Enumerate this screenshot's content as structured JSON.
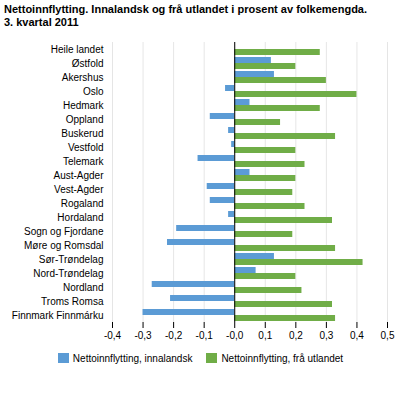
{
  "chart_data": {
    "type": "bar",
    "orientation": "horizontal",
    "title": "Nettoinnflytting. Innalandsk og frå utlandet i prosent av folkemengda.",
    "subtitle": "3. kvartal 2011",
    "categories": [
      "Heile landet",
      "Østfold",
      "Akershus",
      "Oslo",
      "Hedmark",
      "Oppland",
      "Buskerud",
      "Vestfold",
      "Telemark",
      "Aust-Agder",
      "Vest-Agder",
      "Rogaland",
      "Hordaland",
      "Sogn og Fjordane",
      "Møre og Romsdal",
      "Sør-Trøndelag",
      "Nord-Trøndelag",
      "Nordland",
      "Troms Romsa",
      "Finnmark Finnmárku"
    ],
    "series": [
      {
        "name": "Nettoinnflytting, innalandsk",
        "color": "#5B9BD5",
        "values": [
          0.0,
          0.12,
          0.13,
          -0.03,
          0.05,
          -0.08,
          -0.02,
          -0.01,
          -0.12,
          0.05,
          -0.09,
          -0.08,
          -0.02,
          -0.19,
          -0.22,
          0.13,
          0.07,
          -0.27,
          -0.21,
          -0.3
        ]
      },
      {
        "name": "Nettoinnflytting, frå utlandet",
        "color": "#70AD47",
        "values": [
          0.28,
          0.2,
          0.3,
          0.4,
          0.28,
          0.15,
          0.33,
          0.2,
          0.23,
          0.2,
          0.19,
          0.23,
          0.32,
          0.19,
          0.33,
          0.42,
          0.2,
          0.22,
          0.32,
          0.33
        ]
      }
    ],
    "xlim": [
      -0.4,
      0.5
    ],
    "xticks": [
      {
        "value": -0.4,
        "label": "-0,4"
      },
      {
        "value": -0.3,
        "label": "-0,3"
      },
      {
        "value": -0.2,
        "label": "-0,2"
      },
      {
        "value": -0.1,
        "label": "-0,1"
      },
      {
        "value": 0.0,
        "label": "-0,0"
      },
      {
        "value": 0.1,
        "label": "0,1"
      },
      {
        "value": 0.2,
        "label": "0,2"
      },
      {
        "value": 0.3,
        "label": "0,3"
      },
      {
        "value": 0.4,
        "label": "0,4"
      },
      {
        "value": 0.5,
        "label": "0,5"
      }
    ],
    "grid": true,
    "legend": "bottom"
  }
}
